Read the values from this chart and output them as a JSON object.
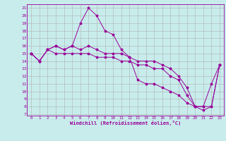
{
  "xlabel": "Windchill (Refroidissement éolien,°C)",
  "bg_color": "#c8ecec",
  "line_color": "#990099",
  "grid_color": "#b0b0b0",
  "xlim": [
    -0.5,
    23.5
  ],
  "ylim": [
    6.8,
    21.5
  ],
  "yticks": [
    7,
    8,
    9,
    10,
    11,
    12,
    13,
    14,
    15,
    16,
    17,
    18,
    19,
    20,
    21
  ],
  "xticks": [
    0,
    1,
    2,
    3,
    4,
    5,
    6,
    7,
    8,
    9,
    10,
    11,
    12,
    13,
    14,
    15,
    16,
    17,
    18,
    19,
    20,
    21,
    22,
    23
  ],
  "line1_x": [
    0,
    1,
    2,
    3,
    4,
    5,
    6,
    7,
    8,
    9,
    10,
    11,
    12,
    13,
    14,
    15,
    16,
    17,
    18,
    19,
    20,
    21,
    22,
    23
  ],
  "line1_y": [
    15,
    14,
    15.5,
    16,
    15.5,
    16,
    19,
    21,
    20,
    18,
    17.5,
    15.5,
    14.5,
    11.5,
    11,
    11,
    10.5,
    10,
    9.5,
    8.5,
    8,
    8,
    11,
    13.5
  ],
  "line2_x": [
    0,
    1,
    2,
    3,
    4,
    5,
    6,
    7,
    8,
    9,
    10,
    11,
    12,
    13,
    14,
    15,
    16,
    17,
    18,
    19,
    20,
    21,
    22,
    23
  ],
  "line2_y": [
    15,
    14,
    15.5,
    16,
    15.5,
    16,
    15.5,
    16,
    15.5,
    15,
    15,
    15,
    14.5,
    14,
    14,
    14,
    13.5,
    13,
    12,
    10.5,
    8,
    8,
    8,
    13.5
  ],
  "line3_x": [
    0,
    1,
    2,
    3,
    4,
    5,
    6,
    7,
    8,
    9,
    10,
    11,
    12,
    13,
    14,
    15,
    16,
    17,
    18,
    19,
    20,
    21,
    22,
    23
  ],
  "line3_y": [
    15,
    14,
    15.5,
    15,
    15,
    15,
    15,
    15,
    14.5,
    14.5,
    14.5,
    14,
    14,
    13.5,
    13.5,
    13,
    13,
    12,
    11.5,
    9.5,
    8,
    7.5,
    8,
    13.5
  ]
}
